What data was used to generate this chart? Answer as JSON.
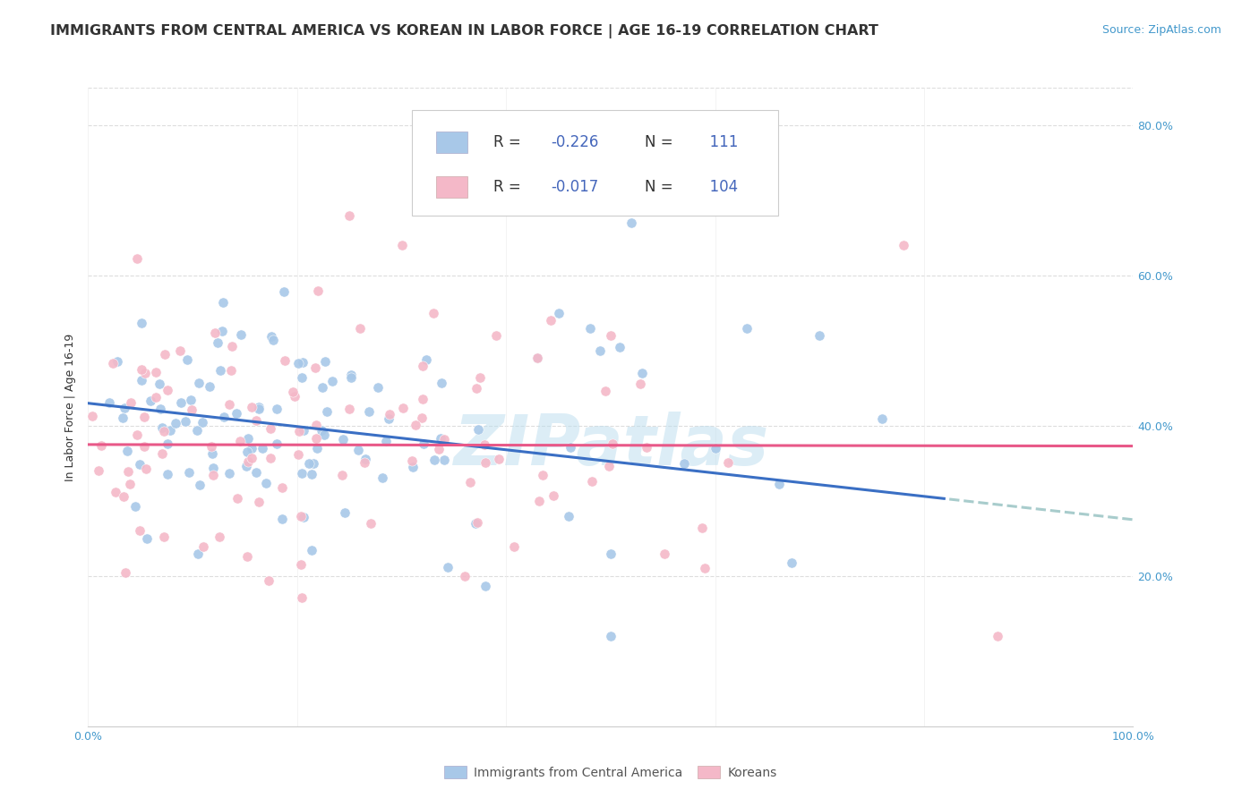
{
  "title": "IMMIGRANTS FROM CENTRAL AMERICA VS KOREAN IN LABOR FORCE | AGE 16-19 CORRELATION CHART",
  "source": "Source: ZipAtlas.com",
  "ylabel": "In Labor Force | Age 16-19",
  "xlim": [
    0.0,
    1.0
  ],
  "ylim": [
    0.0,
    0.85
  ],
  "x_ticks": [
    0.0,
    0.2,
    0.4,
    0.6,
    0.8,
    1.0
  ],
  "x_tick_labels": [
    "0.0%",
    "",
    "",
    "",
    "",
    "100.0%"
  ],
  "y_ticks": [
    0.0,
    0.2,
    0.4,
    0.6,
    0.8
  ],
  "y_tick_labels_right": [
    "",
    "20.0%",
    "40.0%",
    "60.0%",
    "80.0%"
  ],
  "blue_R": "-0.226",
  "blue_N": "111",
  "pink_R": "-0.017",
  "pink_N": "104",
  "blue_scatter_color": "#A8C8E8",
  "pink_scatter_color": "#F4B8C8",
  "blue_line_color": "#3A6FC4",
  "pink_line_color": "#E85888",
  "dashed_line_color": "#A8CCCC",
  "legend_text_color": "#4466BB",
  "tick_color": "#4499CC",
  "watermark_text": "ZIPatlas",
  "watermark_color": "#BBDDEE",
  "title_fontsize": 11.5,
  "source_fontsize": 9,
  "legend_fontsize": 12,
  "axis_label_fontsize": 9,
  "tick_fontsize": 9,
  "background_color": "#FFFFFF",
  "grid_color": "#DDDDDD",
  "blue_trend_intercept": 0.43,
  "blue_trend_slope": -0.155,
  "blue_trend_solid_end": 0.82,
  "pink_trend_intercept": 0.375,
  "pink_trend_slope": -0.002
}
